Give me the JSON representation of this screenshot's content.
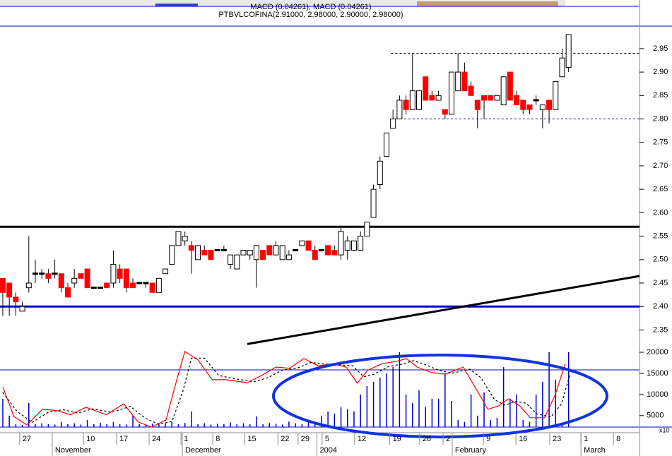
{
  "chart_data": [
    {
      "type": "candlestick",
      "title": "PTBVLCOFINA(2.91000, 2.98000, 2.90000, 2.98000)",
      "subtitle": "MACD (0.04261), MACD (0.04261)",
      "open": [
        2.46,
        2.45,
        2.42,
        2.39,
        2.44,
        2.47,
        2.47,
        2.47,
        2.47,
        2.47,
        2.44,
        2.45,
        2.47,
        2.48,
        2.44,
        2.44,
        2.45,
        2.45,
        2.48,
        2.48,
        2.45,
        2.45,
        2.45,
        2.45,
        2.43,
        2.47,
        2.49,
        2.53,
        2.54,
        2.53,
        2.5,
        2.52,
        2.52,
        2.52,
        2.52,
        2.49,
        2.48,
        2.51,
        2.51,
        2.5,
        2.52,
        2.53,
        2.51,
        2.5,
        2.5,
        2.52,
        2.53,
        2.54,
        2.52,
        2.52,
        2.53,
        2.52,
        2.51,
        2.52,
        2.52,
        2.52,
        2.55,
        2.59,
        2.66,
        2.72,
        2.78,
        2.8,
        2.84,
        2.82,
        2.82,
        2.89,
        2.85,
        2.84,
        2.82,
        2.81,
        2.86,
        2.9,
        2.87,
        2.84,
        2.85,
        2.85,
        2.84,
        2.83,
        2.9,
        2.85,
        2.84,
        2.83,
        2.84,
        2.82,
        2.84,
        2.82,
        2.89,
        2.91
      ],
      "high": [
        2.46,
        2.45,
        2.43,
        2.41,
        2.55,
        2.5,
        2.48,
        2.48,
        2.5,
        2.47,
        2.45,
        2.48,
        2.47,
        2.48,
        2.44,
        2.44,
        2.45,
        2.52,
        2.49,
        2.48,
        2.46,
        2.45,
        2.45,
        2.45,
        2.46,
        2.48,
        2.53,
        2.56,
        2.56,
        2.54,
        2.53,
        2.53,
        2.52,
        2.52,
        2.53,
        2.51,
        2.51,
        2.52,
        2.52,
        2.53,
        2.52,
        2.53,
        2.54,
        2.53,
        2.52,
        2.52,
        2.54,
        2.54,
        2.53,
        2.52,
        2.53,
        2.53,
        2.57,
        2.55,
        2.54,
        2.56,
        2.58,
        2.66,
        2.72,
        2.77,
        2.82,
        2.85,
        2.85,
        2.94,
        2.86,
        2.89,
        2.86,
        2.86,
        2.82,
        2.9,
        2.94,
        2.92,
        2.88,
        2.84,
        2.85,
        2.85,
        2.85,
        2.89,
        2.9,
        2.86,
        2.84,
        2.83,
        2.85,
        2.83,
        2.84,
        2.88,
        2.95,
        2.98
      ],
      "low": [
        2.38,
        2.38,
        2.38,
        2.39,
        2.43,
        2.45,
        2.46,
        2.45,
        2.46,
        2.43,
        2.42,
        2.44,
        2.46,
        2.44,
        2.44,
        2.44,
        2.44,
        2.44,
        2.45,
        2.43,
        2.44,
        2.45,
        2.44,
        2.43,
        2.43,
        2.47,
        2.49,
        2.53,
        2.53,
        2.47,
        2.5,
        2.51,
        2.5,
        2.52,
        2.52,
        2.48,
        2.48,
        2.51,
        2.5,
        2.44,
        2.5,
        2.51,
        2.51,
        2.5,
        2.5,
        2.52,
        2.53,
        2.52,
        2.5,
        2.52,
        2.51,
        2.51,
        2.5,
        2.5,
        2.52,
        2.52,
        2.55,
        2.59,
        2.65,
        2.72,
        2.78,
        2.8,
        2.81,
        2.82,
        2.82,
        2.84,
        2.84,
        2.84,
        2.8,
        2.81,
        2.86,
        2.86,
        2.85,
        2.78,
        2.8,
        2.84,
        2.84,
        2.83,
        2.84,
        2.83,
        2.81,
        2.81,
        2.83,
        2.78,
        2.79,
        2.82,
        2.89,
        2.9
      ],
      "close": [
        2.43,
        2.42,
        2.41,
        2.4,
        2.45,
        2.47,
        2.47,
        2.46,
        2.47,
        2.44,
        2.42,
        2.46,
        2.46,
        2.44,
        2.44,
        2.44,
        2.44,
        2.49,
        2.46,
        2.44,
        2.44,
        2.45,
        2.45,
        2.43,
        2.46,
        2.48,
        2.53,
        2.56,
        2.55,
        2.52,
        2.53,
        2.51,
        2.5,
        2.52,
        2.52,
        2.51,
        2.51,
        2.52,
        2.52,
        2.53,
        2.5,
        2.51,
        2.53,
        2.53,
        2.51,
        2.52,
        2.54,
        2.52,
        2.5,
        2.52,
        2.51,
        2.51,
        2.56,
        2.54,
        2.54,
        2.55,
        2.58,
        2.65,
        2.71,
        2.77,
        2.8,
        2.84,
        2.82,
        2.86,
        2.86,
        2.84,
        2.84,
        2.85,
        2.81,
        2.9,
        2.9,
        2.86,
        2.85,
        2.82,
        2.84,
        2.84,
        2.85,
        2.89,
        2.84,
        2.83,
        2.82,
        2.82,
        2.84,
        2.83,
        2.82,
        2.88,
        2.93,
        2.98
      ],
      "up_color": "#ffffff",
      "down_color": "#ff0000",
      "flat_color": "#000000",
      "xlim": [
        -0.43,
        97.9
      ],
      "xticks": [
        {
          "value": 2.6,
          "label": "27"
        },
        {
          "value": 12.4,
          "label": "10"
        },
        {
          "value": 17.5,
          "label": "17"
        },
        {
          "value": 22.5,
          "label": "24"
        },
        {
          "value": 27.4,
          "label": "1"
        },
        {
          "value": 32.3,
          "label": "8"
        },
        {
          "value": 37.2,
          "label": "15"
        },
        {
          "value": 42.3,
          "label": "22"
        },
        {
          "value": 45.4,
          "label": "29"
        },
        {
          "value": 49.1,
          "label": "5"
        },
        {
          "value": 54.1,
          "label": "12"
        },
        {
          "value": 59.5,
          "label": "19"
        },
        {
          "value": 64.1,
          "label": "26"
        },
        {
          "value": 67.7,
          "label": "2"
        },
        {
          "value": 73.9,
          "label": "9"
        },
        {
          "value": 78.9,
          "label": "16"
        },
        {
          "value": 84.1,
          "label": "23"
        },
        {
          "value": 88.9,
          "label": "1"
        },
        {
          "value": 93.9,
          "label": "8"
        }
      ],
      "month_ticks": [
        {
          "value": 7.6,
          "label": "November"
        },
        {
          "value": 27.6,
          "label": "December"
        },
        {
          "value": 48.3,
          "label": "2004"
        },
        {
          "value": 69.1,
          "label": "February"
        },
        {
          "value": 88.9,
          "label": "March"
        }
      ],
      "ylim": [
        2.316,
        2.998
      ],
      "yticks": [
        {
          "value": 2.35,
          "label": "2.35"
        },
        {
          "value": 2.4,
          "label": "2.40"
        },
        {
          "value": 2.45,
          "label": "2.45"
        },
        {
          "value": 2.5,
          "label": "2.50"
        },
        {
          "value": 2.55,
          "label": "2.55"
        },
        {
          "value": 2.6,
          "label": "2.60"
        },
        {
          "value": 2.65,
          "label": "2.65"
        },
        {
          "value": 2.7,
          "label": "2.70"
        },
        {
          "value": 2.75,
          "label": "2.75"
        },
        {
          "value": 2.8,
          "label": "2.80"
        },
        {
          "value": 2.85,
          "label": "2.85"
        },
        {
          "value": 2.9,
          "label": "2.90"
        },
        {
          "value": 2.95,
          "label": "2.95"
        }
      ],
      "hlines": [
        {
          "value": 2.57,
          "color": "#000000",
          "width": 3
        },
        {
          "value": 2.4,
          "color": "#0000cc",
          "width": 3
        }
      ],
      "dashed_lines": [
        {
          "x": [
            59.7,
            97.9
          ],
          "value": 2.94,
          "color": "#000000"
        },
        {
          "x": [
            60.4,
            97.9
          ],
          "value": 2.8,
          "color": "#0000cc"
        }
      ],
      "trendline": {
        "x": [
          37.6,
          97.9
        ],
        "values": [
          2.32,
          2.465
        ],
        "color": "#000000"
      }
    },
    {
      "type": "volume",
      "unit_label": "x10",
      "color": "#0000cc",
      "values": [
        9000,
        5000,
        3000,
        2800,
        8000,
        3000,
        3200,
        3000,
        2900,
        3500,
        3000,
        3200,
        2900,
        4000,
        3000,
        3300,
        3000,
        3500,
        3000,
        2900,
        5000,
        3000,
        2900,
        3100,
        3000,
        3200,
        3500,
        3000,
        3300,
        6000,
        3000,
        3200,
        2900,
        3100,
        3000,
        3400,
        3000,
        3200,
        3000,
        4800,
        3000,
        3300,
        3100,
        2900,
        3600,
        3200,
        3000,
        3500,
        3300,
        5000,
        6000,
        5500,
        7000,
        6500,
        6000,
        10000,
        12000,
        13000,
        14000,
        15000,
        16500,
        20000,
        10000,
        8000,
        11000,
        7000,
        9000,
        9000,
        15000,
        8500,
        4000,
        3500,
        10000,
        5000,
        10500,
        4000,
        4500,
        16500,
        9000,
        10000,
        4000,
        3500,
        10000,
        13000,
        20000,
        13500,
        3000,
        20000
      ],
      "series": [
        {
          "color": "#ff0000",
          "dash": false,
          "x": [
            0,
            1.7,
            3.7,
            6.1,
            8.3,
            10.4,
            12.8,
            15.9,
            18.6,
            20.8,
            22.9,
            25.1,
            26.7,
            28.0,
            30.0,
            32.2,
            34.3,
            37.6,
            39.8,
            42.0,
            44.1,
            46.3,
            48.5,
            50.7,
            52.8,
            54.5,
            56.1,
            58.3,
            60.4,
            62.1,
            63.7,
            65.9,
            68.0,
            70.8,
            72.4,
            74.6,
            76.2,
            77.8,
            79.5,
            81.1,
            83.3,
            84.9,
            86.5
          ],
          "values": [
            11800,
            4800,
            2800,
            6500,
            6200,
            5200,
            7000,
            5200,
            7800,
            3500,
            2300,
            4000,
            13200,
            20200,
            18200,
            13500,
            13500,
            12800,
            14500,
            16500,
            16200,
            18500,
            16800,
            17300,
            16500,
            12700,
            15700,
            17300,
            17800,
            18500,
            16500,
            15200,
            14800,
            16500,
            12300,
            6500,
            7300,
            9000,
            7300,
            4500,
            4500,
            9800,
            17300
          ]
        },
        {
          "color": "#000000",
          "dash": true,
          "x": [
            0,
            2.2,
            4.5,
            7.0,
            9.3,
            11.5,
            13.8,
            16.8,
            19.6,
            21.9,
            23.9,
            26.0,
            27.7,
            29.0,
            31.0,
            33.2,
            35.4,
            38.6,
            40.8,
            43.0,
            45.2,
            47.4,
            49.5,
            51.7,
            53.8,
            55.5,
            57.1,
            59.3,
            61.4,
            63.1,
            64.8,
            66.9,
            69.0,
            71.8,
            73.5,
            75.6,
            77.2,
            78.9,
            80.5,
            82.1,
            84.3,
            85.9,
            87.2
          ],
          "values": [
            10500,
            6000,
            3400,
            5800,
            6400,
            5600,
            6600,
            5800,
            7200,
            4400,
            3000,
            3600,
            10800,
            18600,
            18600,
            14500,
            13800,
            13000,
            14000,
            15800,
            16200,
            17600,
            17200,
            17000,
            16800,
            14200,
            14800,
            16600,
            17200,
            18000,
            17200,
            15800,
            15000,
            16000,
            14000,
            8800,
            7500,
            8400,
            7900,
            5400,
            4700,
            7800,
            14600
          ]
        }
      ],
      "ylim": [
        2300,
        21000
      ],
      "yticks": [
        5000,
        10000,
        15000,
        20000
      ]
    }
  ]
}
